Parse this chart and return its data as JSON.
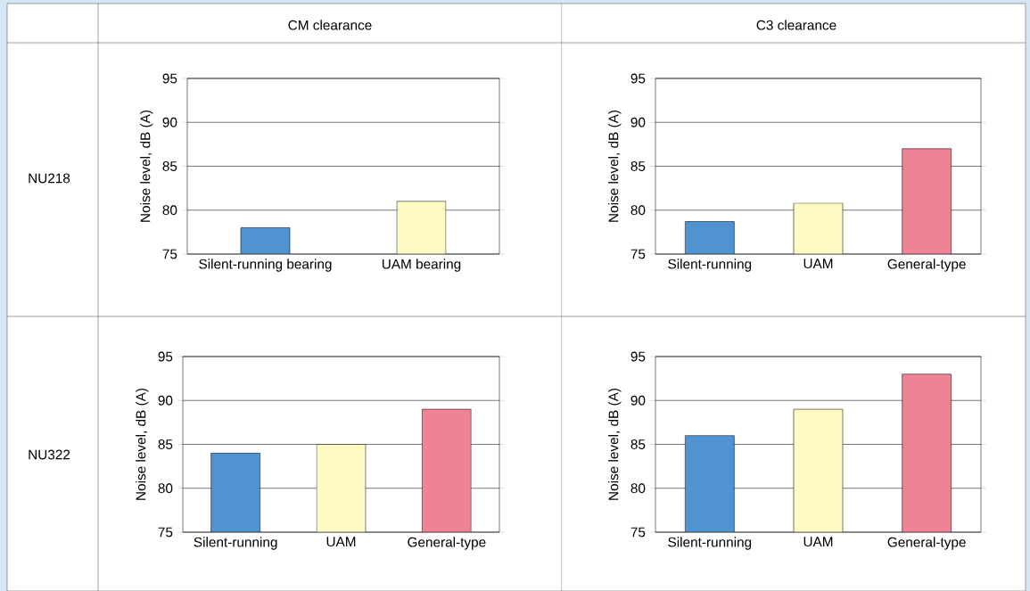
{
  "chart_data": [
    {
      "type": "bar",
      "title": "CM clearance",
      "annotations": [
        "NU218"
      ],
      "categories": [
        "Silent-running bearing",
        "UAM bearing"
      ],
      "values": [
        78,
        81
      ],
      "colors": [
        "#4f94d0",
        "#fffac4"
      ],
      "ylabel": "Noise level, dB (A)",
      "ylim": [
        75,
        95
      ],
      "yticks": [
        75,
        80,
        85,
        90,
        95
      ],
      "grid": "y"
    },
    {
      "type": "bar",
      "title": "C3 clearance",
      "categories": [
        "Silent-running",
        "UAM",
        "General-type"
      ],
      "values": [
        78.7,
        80.8,
        87
      ],
      "colors": [
        "#4f94d0",
        "#fffac4",
        "#ee8396"
      ],
      "ylabel": "Noise level, dB (A)",
      "ylim": [
        75,
        95
      ],
      "yticks": [
        75,
        80,
        85,
        90,
        95
      ],
      "grid": "y"
    },
    {
      "type": "bar",
      "annotations": [
        "NU322"
      ],
      "categories": [
        "Silent-running",
        "UAM",
        "General-type"
      ],
      "values": [
        84,
        85,
        89
      ],
      "colors": [
        "#4f94d0",
        "#fffac4",
        "#ee8396"
      ],
      "ylabel": "Noise level, dB (A)",
      "ylim": [
        75,
        95
      ],
      "yticks": [
        75,
        80,
        85,
        90,
        95
      ],
      "grid": "y"
    },
    {
      "type": "bar",
      "categories": [
        "Silent-running",
        "UAM",
        "General-type"
      ],
      "values": [
        86,
        89,
        93
      ],
      "colors": [
        "#4f94d0",
        "#fffac4",
        "#ee8396"
      ],
      "ylabel": "Noise level, dB (A)",
      "ylim": [
        75,
        95
      ],
      "yticks": [
        75,
        80,
        85,
        90,
        95
      ],
      "grid": "y"
    }
  ]
}
